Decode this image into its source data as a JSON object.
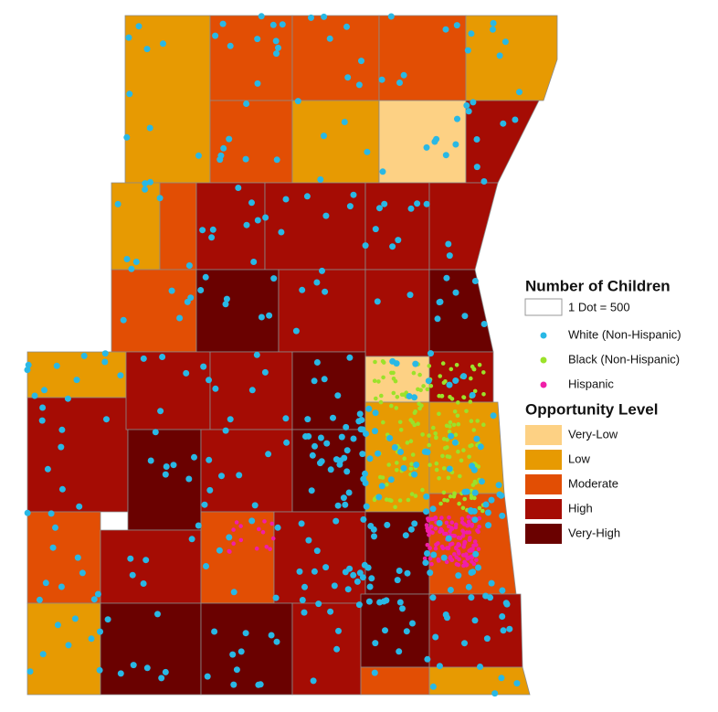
{
  "legend": {
    "title": "Number of Children",
    "dot_scale": "1 Dot = 500",
    "dots": [
      {
        "label": "White (Non-Hispanic)",
        "color": "#29b8e5"
      },
      {
        "label": "Black (Non-Hispanic)",
        "color": "#9be22a"
      },
      {
        "label": "Hispanic",
        "color": "#f01ea8"
      }
    ],
    "opportunity_title": "Opportunity Level",
    "levels": [
      {
        "label": "Very-Low",
        "color": "#fdd184"
      },
      {
        "label": "Low",
        "color": "#e79a02"
      },
      {
        "label": "Moderate",
        "color": "#e24e04"
      },
      {
        "label": "High",
        "color": "#a50c04"
      },
      {
        "label": "Very-High",
        "color": "#6a0100"
      }
    ]
  }
}
